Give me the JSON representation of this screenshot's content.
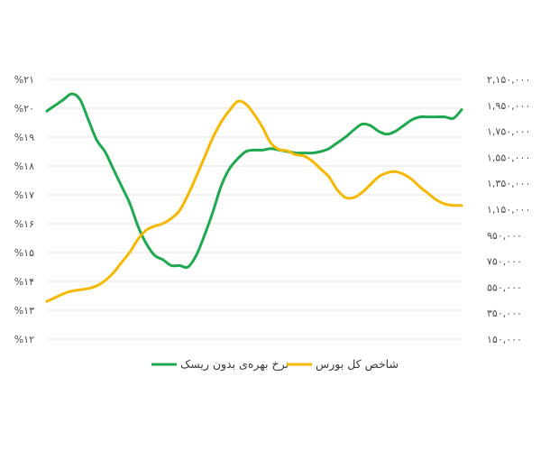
{
  "chart_data": {
    "type": "line",
    "y_left_ticks": [
      "%۲۱",
      "%۲۰",
      "%۱۹",
      "%۱۸",
      "%۱۷",
      "%۱۶",
      "%۱۵",
      "%۱۴",
      "%۱۳",
      "%۱۲"
    ],
    "y_right_ticks": [
      "۲,۱۵۰,۰۰۰",
      "۱,۹۵۰,۰۰۰",
      "۱,۷۵۰,۰۰۰",
      "۱,۵۵۰,۰۰۰",
      "۱,۳۵۰,۰۰۰",
      "۱,۱۵۰,۰۰۰",
      "۹۵۰,۰۰۰",
      "۷۵۰,۰۰۰",
      "۵۵۰,۰۰۰",
      "۳۵۰,۰۰۰",
      "۱۵۰,۰۰۰"
    ],
    "y_left_range": [
      12,
      21
    ],
    "y_right_range": [
      150000,
      2150000
    ],
    "x": [
      0,
      1,
      2,
      3,
      4,
      5,
      6,
      7,
      8,
      9,
      10,
      11,
      12,
      13,
      14,
      15,
      16,
      17,
      18,
      19,
      20,
      21,
      22,
      23,
      24,
      25,
      26,
      27,
      28,
      29,
      30,
      31,
      32,
      33,
      34,
      35,
      36,
      37,
      38,
      39,
      40,
      41,
      42,
      43,
      44,
      45,
      46,
      47,
      48,
      49,
      50
    ],
    "series": [
      {
        "name": "نرخ بهره‌ی بدون ریسک",
        "axis": "left",
        "color": "#1fa84f",
        "values": [
          19.9,
          20.1,
          20.3,
          20.5,
          20.3,
          19.6,
          18.9,
          18.5,
          17.9,
          17.3,
          16.7,
          15.9,
          15.3,
          14.9,
          14.75,
          14.55,
          14.55,
          14.5,
          14.9,
          15.6,
          16.4,
          17.3,
          17.9,
          18.25,
          18.5,
          18.55,
          18.55,
          18.6,
          18.55,
          18.5,
          18.45,
          18.45,
          18.45,
          18.5,
          18.6,
          18.8,
          19.0,
          19.25,
          19.45,
          19.4,
          19.2,
          19.1,
          19.2,
          19.4,
          19.6,
          19.7,
          19.7,
          19.7,
          19.7,
          19.65,
          19.95
        ]
      },
      {
        "name": "شاخص کل بورس",
        "axis": "right",
        "color": "#f5b800",
        "values": [
          440000,
          470000,
          500000,
          520000,
          530000,
          540000,
          560000,
          600000,
          660000,
          740000,
          820000,
          920000,
          990000,
          1020000,
          1040000,
          1080000,
          1140000,
          1260000,
          1400000,
          1550000,
          1700000,
          1820000,
          1910000,
          1980000,
          1960000,
          1880000,
          1780000,
          1660000,
          1610000,
          1600000,
          1570000,
          1560000,
          1520000,
          1460000,
          1400000,
          1300000,
          1240000,
          1240000,
          1280000,
          1340000,
          1400000,
          1430000,
          1440000,
          1420000,
          1380000,
          1320000,
          1270000,
          1220000,
          1190000,
          1180000,
          1180000
        ]
      }
    ],
    "legend": [
      {
        "label": "نرخ بهره‌ی بدون ریسک",
        "color": "#1fa84f"
      },
      {
        "label": "شاخص کل بورس",
        "color": "#f5b800"
      }
    ],
    "legend_position": "bottom",
    "grid": true
  }
}
